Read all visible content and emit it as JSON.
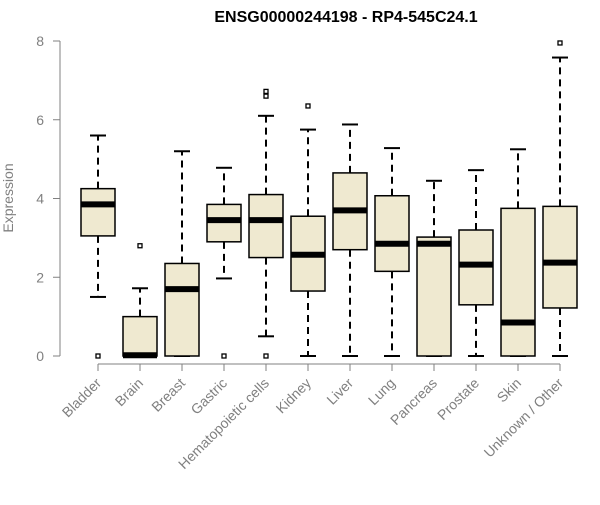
{
  "chart_data": {
    "type": "boxplot",
    "title": "ENSG00000244198 - RP4-545C24.1",
    "xlabel": "",
    "ylabel": "Expression",
    "ylim": [
      0,
      8
    ],
    "yticks": [
      0,
      2,
      4,
      6,
      8
    ],
    "grid": false,
    "categories": [
      "Bladder",
      "Brain",
      "Breast",
      "Gastric",
      "Hematopoietic cells",
      "Kidney",
      "Liver",
      "Lung",
      "Pancreas",
      "Prostate",
      "Skin",
      "Unknown / Other"
    ],
    "boxes": [
      {
        "name": "Bladder",
        "whisker_low": 1.5,
        "q1": 3.05,
        "median": 3.85,
        "q3": 4.25,
        "whisker_high": 5.6,
        "outliers": [
          0
        ]
      },
      {
        "name": "Brain",
        "whisker_low": 0,
        "q1": 0,
        "median": 0.02,
        "q3": 1.0,
        "whisker_high": 1.72,
        "outliers": [
          2.8
        ]
      },
      {
        "name": "Breast",
        "whisker_low": 0,
        "q1": 0,
        "median": 1.7,
        "q3": 2.35,
        "whisker_high": 5.2,
        "outliers": []
      },
      {
        "name": "Gastric",
        "whisker_low": 1.97,
        "q1": 2.9,
        "median": 3.45,
        "q3": 3.85,
        "whisker_high": 4.78,
        "outliers": [
          0
        ]
      },
      {
        "name": "Hematopoietic cells",
        "whisker_low": 0.5,
        "q1": 2.5,
        "median": 3.45,
        "q3": 4.1,
        "whisker_high": 6.1,
        "outliers": [
          6.6,
          6.72,
          0
        ]
      },
      {
        "name": "Kidney",
        "whisker_low": 0,
        "q1": 1.65,
        "median": 2.57,
        "q3": 3.55,
        "whisker_high": 5.75,
        "outliers": [
          6.35
        ]
      },
      {
        "name": "Liver",
        "whisker_low": 0,
        "q1": 2.7,
        "median": 3.7,
        "q3": 4.65,
        "whisker_high": 5.88,
        "outliers": []
      },
      {
        "name": "Lung",
        "whisker_low": 0,
        "q1": 2.15,
        "median": 2.85,
        "q3": 4.07,
        "whisker_high": 5.28,
        "outliers": []
      },
      {
        "name": "Pancreas",
        "whisker_low": 0,
        "q1": 0,
        "median": 2.85,
        "q3": 3.02,
        "whisker_high": 4.45,
        "outliers": []
      },
      {
        "name": "Prostate",
        "whisker_low": 0,
        "q1": 1.3,
        "median": 2.32,
        "q3": 3.2,
        "whisker_high": 4.72,
        "outliers": []
      },
      {
        "name": "Skin",
        "whisker_low": 0,
        "q1": 0,
        "median": 0.85,
        "q3": 3.75,
        "whisker_high": 5.25,
        "outliers": []
      },
      {
        "name": "Unknown / Other",
        "whisker_low": 0,
        "q1": 1.22,
        "median": 2.37,
        "q3": 3.8,
        "whisker_high": 7.58,
        "outliers": [
          7.95
        ]
      }
    ]
  },
  "colors": {
    "box_fill": "#efe9d0",
    "box_stroke": "#000000",
    "median": "#000000",
    "axis": "#808080",
    "title": "#000000"
  }
}
